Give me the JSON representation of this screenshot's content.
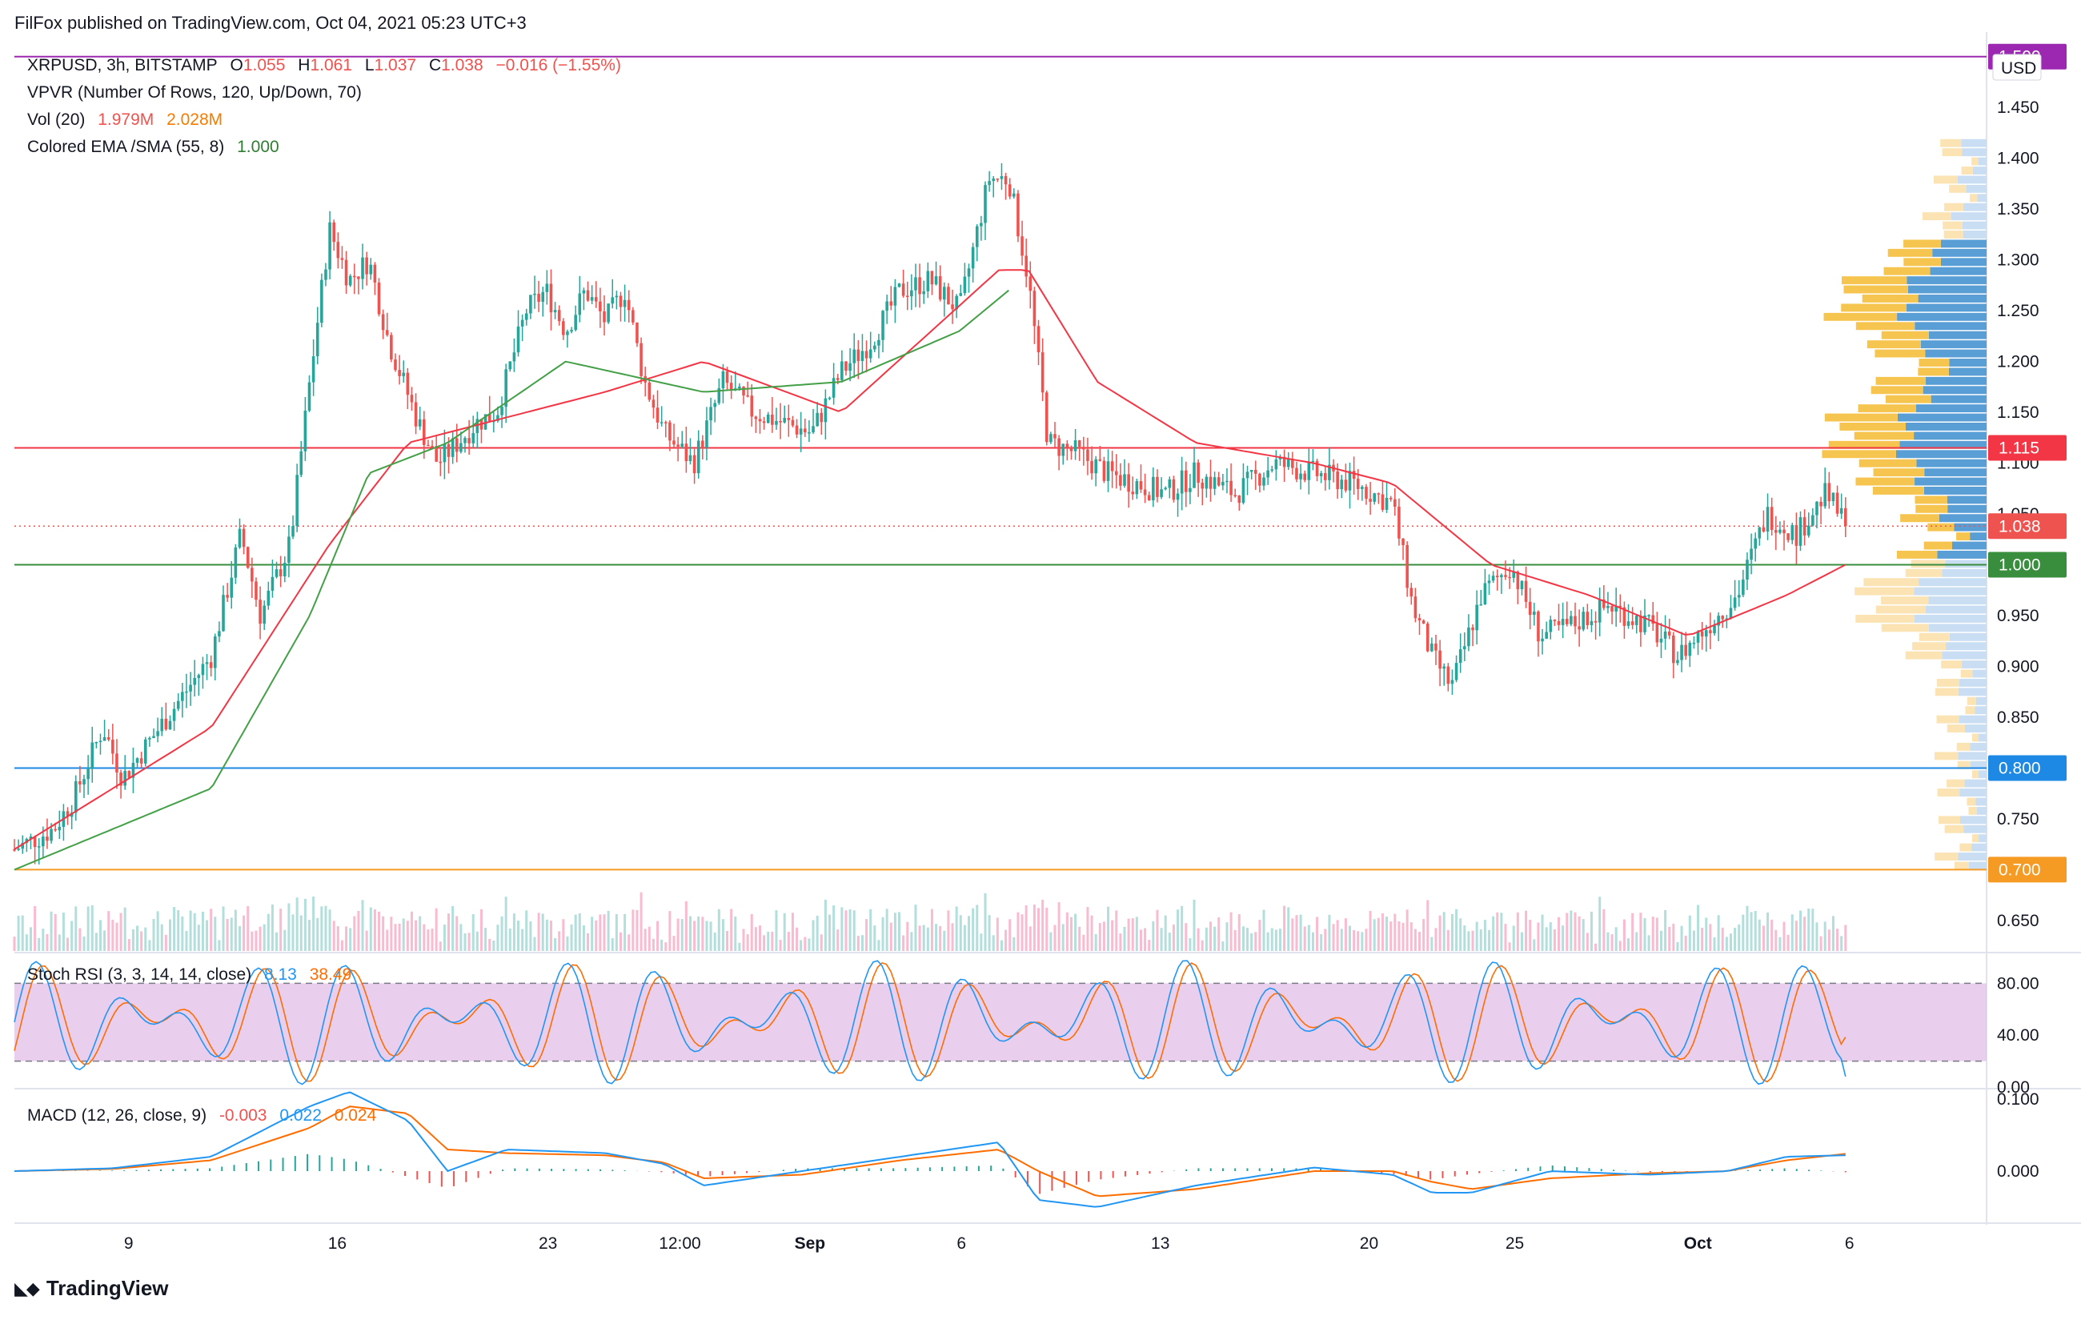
{
  "publisher_line": "FilFox published on TradingView.com, Oct 04, 2021 05:23 UTC+3",
  "footer_brand": "TradingView",
  "currency_label": "USD",
  "legend": {
    "symbol": "XRPUSD, 3h, BITSTAMP",
    "o_label": "O",
    "o_value": "1.055",
    "h_label": "H",
    "h_value": "1.061",
    "l_label": "L",
    "l_value": "1.037",
    "c_label": "C",
    "c_value": "1.038",
    "change": "−0.016 (−1.55%)",
    "vpvr": "VPVR (Number Of Rows, 120, Up/Down, 70)",
    "vol_label": "Vol (20)",
    "vol_value_1": "1.979M",
    "vol_value_2": "2.028M",
    "ema_label": "Colored EMA /SMA (55, 8)",
    "ema_value": "1.000"
  },
  "stoch": {
    "label": "Stoch RSI (3, 3, 14, 14, close)",
    "k_value": "8.13",
    "d_value": "38.49"
  },
  "macd": {
    "label": "MACD (12, 26, close, 9)",
    "hist_value": "-0.003",
    "macd_value": "0.022",
    "signal_value": "0.024"
  },
  "colors": {
    "up": "#26a69a",
    "down": "#ef5350",
    "ema": "#f23645",
    "sma": "#43a047",
    "resistance": "#f23645",
    "support_green": "#388e3c",
    "support_blue": "#1e88e5",
    "support_orange": "#f59a23",
    "top_line": "#9c27b0",
    "stoch_band": "#e1bee7",
    "stoch_k": "#2196f3",
    "stoch_d": "#ff6d00",
    "macd_line": "#2196f3",
    "signal_line": "#ff6d00"
  },
  "chart_data": [
    {
      "type": "candlestick",
      "title": "XRPUSD, 3h, BITSTAMP",
      "y_axis_ticks": [
        "1.450",
        "1.400",
        "1.350",
        "1.300",
        "1.250",
        "1.200",
        "1.150",
        "1.100",
        "1.050",
        "0.950",
        "0.900",
        "0.850",
        "0.750",
        "0.650"
      ],
      "ylim": [
        0.62,
        1.51
      ],
      "x_axis_ticks": [
        "9",
        "16",
        "23",
        "12:00",
        "Sep",
        "6",
        "13",
        "20",
        "25",
        "Oct",
        "6"
      ],
      "horizontal_lines": [
        {
          "value": 1.5,
          "label": "1.500",
          "color": "#9c27b0"
        },
        {
          "value": 1.115,
          "label": "1.115",
          "color": "#f23645"
        },
        {
          "value": 1.0,
          "label": "1.000",
          "color": "#388e3c"
        },
        {
          "value": 0.8,
          "label": "0.800",
          "color": "#1e88e5"
        },
        {
          "value": 0.7,
          "label": "0.700",
          "color": "#f59a23"
        }
      ],
      "last_price": {
        "value": 1.038,
        "label": "1.038"
      },
      "ohlc_last": {
        "open": 1.055,
        "high": 1.061,
        "low": 1.037,
        "close": 1.038
      },
      "price_path": [
        [
          0,
          0.72
        ],
        [
          0.01,
          0.73
        ],
        [
          0.02,
          0.74
        ],
        [
          0.03,
          0.77
        ],
        [
          0.045,
          0.84
        ],
        [
          0.055,
          0.79
        ],
        [
          0.07,
          0.83
        ],
        [
          0.085,
          0.87
        ],
        [
          0.1,
          0.91
        ],
        [
          0.115,
          1.03
        ],
        [
          0.125,
          0.95
        ],
        [
          0.14,
          1.02
        ],
        [
          0.15,
          1.18
        ],
        [
          0.16,
          1.33
        ],
        [
          0.17,
          1.28
        ],
        [
          0.18,
          1.3
        ],
        [
          0.19,
          1.22
        ],
        [
          0.205,
          1.14
        ],
        [
          0.215,
          1.1
        ],
        [
          0.225,
          1.12
        ],
        [
          0.235,
          1.14
        ],
        [
          0.245,
          1.15
        ],
        [
          0.26,
          1.25
        ],
        [
          0.27,
          1.27
        ],
        [
          0.28,
          1.23
        ],
        [
          0.29,
          1.27
        ],
        [
          0.3,
          1.24
        ],
        [
          0.31,
          1.27
        ],
        [
          0.32,
          1.18
        ],
        [
          0.33,
          1.13
        ],
        [
          0.345,
          1.1
        ],
        [
          0.36,
          1.18
        ],
        [
          0.375,
          1.15
        ],
        [
          0.39,
          1.14
        ],
        [
          0.405,
          1.13
        ],
        [
          0.42,
          1.19
        ],
        [
          0.435,
          1.22
        ],
        [
          0.45,
          1.27
        ],
        [
          0.465,
          1.28
        ],
        [
          0.48,
          1.25
        ],
        [
          0.495,
          1.38
        ],
        [
          0.505,
          1.38
        ],
        [
          0.515,
          1.28
        ],
        [
          0.525,
          1.12
        ],
        [
          0.54,
          1.11
        ],
        [
          0.555,
          1.09
        ],
        [
          0.57,
          1.08
        ],
        [
          0.585,
          1.07
        ],
        [
          0.6,
          1.09
        ],
        [
          0.62,
          1.07
        ],
        [
          0.64,
          1.1
        ],
        [
          0.66,
          1.09
        ],
        [
          0.68,
          1.08
        ],
        [
          0.7,
          1.06
        ],
        [
          0.71,
          0.96
        ],
        [
          0.72,
          0.91
        ],
        [
          0.73,
          0.88
        ],
        [
          0.745,
          0.97
        ],
        [
          0.76,
          1.0
        ],
        [
          0.775,
          0.93
        ],
        [
          0.79,
          0.94
        ],
        [
          0.81,
          0.96
        ],
        [
          0.83,
          0.94
        ],
        [
          0.845,
          0.91
        ],
        [
          0.86,
          0.94
        ],
        [
          0.875,
          0.97
        ],
        [
          0.89,
          1.05
        ],
        [
          0.905,
          1.03
        ],
        [
          0.92,
          1.07
        ],
        [
          0.93,
          1.04
        ]
      ],
      "ema": [
        [
          0,
          0.72
        ],
        [
          0.1,
          0.84
        ],
        [
          0.16,
          1.02
        ],
        [
          0.2,
          1.12
        ],
        [
          0.3,
          1.17
        ],
        [
          0.35,
          1.2
        ],
        [
          0.42,
          1.15
        ],
        [
          0.5,
          1.29
        ],
        [
          0.515,
          1.29
        ],
        [
          0.55,
          1.18
        ],
        [
          0.6,
          1.12
        ],
        [
          0.66,
          1.1
        ],
        [
          0.7,
          1.08
        ],
        [
          0.75,
          1.0
        ],
        [
          0.8,
          0.97
        ],
        [
          0.85,
          0.93
        ],
        [
          0.9,
          0.97
        ],
        [
          0.93,
          1.0
        ]
      ],
      "sma": [
        [
          0,
          0.7
        ],
        [
          0.1,
          0.78
        ],
        [
          0.15,
          0.95
        ],
        [
          0.18,
          1.09
        ],
        [
          0.22,
          1.12
        ],
        [
          0.28,
          1.2
        ],
        [
          0.35,
          1.17
        ],
        [
          0.42,
          1.18
        ],
        [
          0.48,
          1.23
        ],
        [
          0.505,
          1.27
        ]
      ]
    },
    {
      "type": "line",
      "title": "Stoch RSI (3, 3, 14, 14, close)",
      "y_axis_ticks": [
        "80.00",
        "40.00",
        "0.00"
      ],
      "ylim": [
        0,
        100
      ],
      "bands": [
        20,
        80
      ],
      "series": [
        {
          "name": "K",
          "last": 8.13
        },
        {
          "name": "D",
          "last": 38.49
        }
      ]
    },
    {
      "type": "line",
      "title": "MACD (12, 26, close, 9)",
      "y_axis_ticks": [
        "0.100",
        "0.000"
      ],
      "series": [
        {
          "name": "MACD",
          "last": 0.022
        },
        {
          "name": "Signal",
          "last": 0.024
        },
        {
          "name": "Histogram",
          "last": -0.003
        }
      ],
      "macd_path": [
        [
          0,
          0.0
        ],
        [
          0.05,
          0.004
        ],
        [
          0.1,
          0.02
        ],
        [
          0.15,
          0.09
        ],
        [
          0.17,
          0.11
        ],
        [
          0.2,
          0.07
        ],
        [
          0.22,
          0.0
        ],
        [
          0.25,
          0.03
        ],
        [
          0.3,
          0.025
        ],
        [
          0.33,
          0.01
        ],
        [
          0.35,
          -0.02
        ],
        [
          0.4,
          0.0
        ],
        [
          0.45,
          0.02
        ],
        [
          0.5,
          0.04
        ],
        [
          0.52,
          -0.04
        ],
        [
          0.55,
          -0.05
        ],
        [
          0.6,
          -0.02
        ],
        [
          0.66,
          0.005
        ],
        [
          0.7,
          -0.005
        ],
        [
          0.72,
          -0.03
        ],
        [
          0.74,
          -0.03
        ],
        [
          0.78,
          0.0
        ],
        [
          0.83,
          -0.005
        ],
        [
          0.87,
          0.0
        ],
        [
          0.9,
          0.02
        ],
        [
          0.93,
          0.022
        ]
      ],
      "signal_path": [
        [
          0,
          0.0
        ],
        [
          0.05,
          0.003
        ],
        [
          0.1,
          0.015
        ],
        [
          0.15,
          0.06
        ],
        [
          0.17,
          0.09
        ],
        [
          0.2,
          0.08
        ],
        [
          0.22,
          0.03
        ],
        [
          0.25,
          0.025
        ],
        [
          0.3,
          0.022
        ],
        [
          0.33,
          0.012
        ],
        [
          0.35,
          -0.01
        ],
        [
          0.4,
          -0.005
        ],
        [
          0.45,
          0.015
        ],
        [
          0.5,
          0.03
        ],
        [
          0.52,
          0.0
        ],
        [
          0.55,
          -0.035
        ],
        [
          0.6,
          -0.025
        ],
        [
          0.66,
          0.0
        ],
        [
          0.7,
          0.0
        ],
        [
          0.72,
          -0.015
        ],
        [
          0.74,
          -0.025
        ],
        [
          0.78,
          -0.01
        ],
        [
          0.83,
          -0.003
        ],
        [
          0.87,
          0.0
        ],
        [
          0.9,
          0.015
        ],
        [
          0.93,
          0.024
        ]
      ]
    }
  ]
}
